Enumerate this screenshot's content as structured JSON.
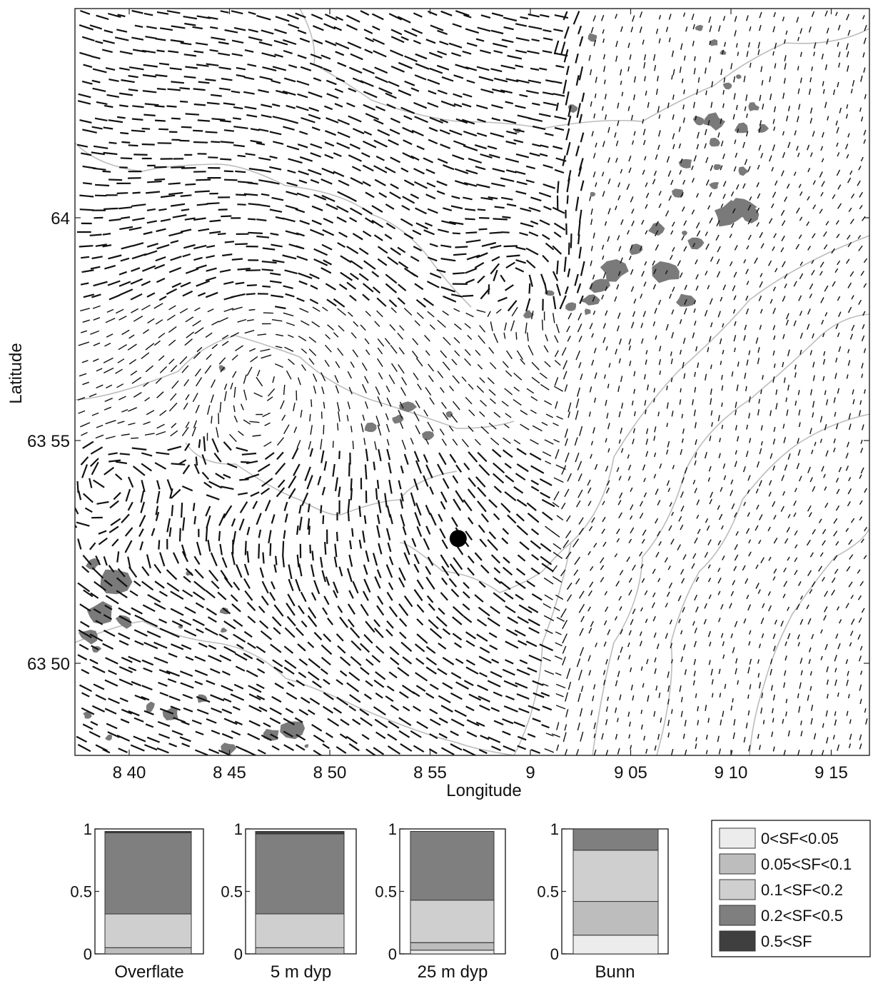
{
  "map": {
    "xlabel": "Longitude",
    "ylabel": "Latitude",
    "x_ticks": [
      "8 40",
      "8 45",
      "8 50",
      "8 55",
      "9",
      "9 05",
      "9 10",
      "9 15"
    ],
    "y_ticks": [
      "64",
      "63 55",
      "63 50"
    ],
    "site_marker": {
      "lon": 8.94,
      "lat": 63.88
    },
    "colors": {
      "vector": "#111111",
      "depth_contour": "#bcbcbc",
      "island": "#7a7a7a",
      "marker": "#000000"
    }
  },
  "chart_data": [
    {
      "type": "bar",
      "stacked": true,
      "title": "Overflate",
      "ylim": [
        0,
        1
      ],
      "yticks": [
        "0",
        "0.5",
        "1"
      ],
      "series": [
        {
          "name": "0<SF<0.05",
          "values": [
            0.0
          ]
        },
        {
          "name": "0.05<SF<0.1",
          "values": [
            0.05
          ]
        },
        {
          "name": "0.1<SF<0.2",
          "values": [
            0.27
          ]
        },
        {
          "name": "0.2<SF<0.5",
          "values": [
            0.65
          ]
        },
        {
          "name": "0.5<SF",
          "values": [
            0.01
          ]
        }
      ]
    },
    {
      "type": "bar",
      "stacked": true,
      "title": "5 m dyp",
      "ylim": [
        0,
        1
      ],
      "yticks": [
        "0",
        "0.5",
        "1"
      ],
      "series": [
        {
          "name": "0<SF<0.05",
          "values": [
            0.0
          ]
        },
        {
          "name": "0.05<SF<0.1",
          "values": [
            0.05
          ]
        },
        {
          "name": "0.1<SF<0.2",
          "values": [
            0.27
          ]
        },
        {
          "name": "0.2<SF<0.5",
          "values": [
            0.64
          ]
        },
        {
          "name": "0.5<SF",
          "values": [
            0.02
          ]
        }
      ]
    },
    {
      "type": "bar",
      "stacked": true,
      "title": "25 m dyp",
      "ylim": [
        0,
        1
      ],
      "yticks": [
        "0",
        "0.5",
        "1"
      ],
      "series": [
        {
          "name": "0<SF<0.05",
          "values": [
            0.03
          ]
        },
        {
          "name": "0.05<SF<0.1",
          "values": [
            0.06
          ]
        },
        {
          "name": "0.1<SF<0.2",
          "values": [
            0.34
          ]
        },
        {
          "name": "0.2<SF<0.5",
          "values": [
            0.55
          ]
        },
        {
          "name": "0.5<SF",
          "values": [
            0.0
          ]
        }
      ]
    },
    {
      "type": "bar",
      "stacked": true,
      "title": "Bunn",
      "ylim": [
        0,
        1
      ],
      "yticks": [
        "0",
        "0.5",
        "1"
      ],
      "series": [
        {
          "name": "0<SF<0.05",
          "values": [
            0.15
          ]
        },
        {
          "name": "0.05<SF<0.1",
          "values": [
            0.27
          ]
        },
        {
          "name": "0.1<SF<0.2",
          "values": [
            0.41
          ]
        },
        {
          "name": "0.2<SF<0.5",
          "values": [
            0.17
          ]
        },
        {
          "name": "0.5<SF",
          "values": [
            0.0
          ]
        }
      ]
    }
  ],
  "legend": {
    "entries": [
      {
        "label": "0<SF<0.05",
        "color": "#ececec"
      },
      {
        "label": "0.05<SF<0.1",
        "color": "#bdbdbd"
      },
      {
        "label": "0.1<SF<0.2",
        "color": "#cfcfcf"
      },
      {
        "label": "0.2<SF<0.5",
        "color": "#7f7f7f"
      },
      {
        "label": "0.5<SF",
        "color": "#3f3f3f"
      }
    ]
  }
}
